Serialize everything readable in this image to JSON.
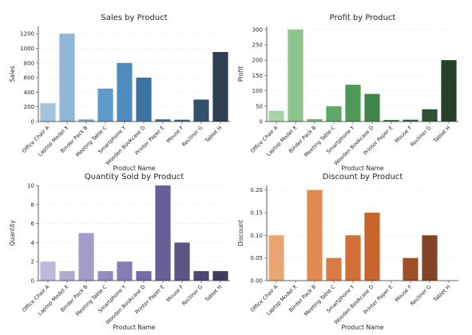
{
  "chart_data": [
    {
      "type": "bar",
      "title": "Sales by Product",
      "xlabel": "",
      "ylabel": "Sales",
      "ylim": [
        0,
        1300
      ],
      "yticks": [
        0,
        200,
        400,
        600,
        800,
        1000,
        1200
      ],
      "categories": [
        "Office Chair A",
        "Laptop Model X",
        "Binder Pack B",
        "Meeting Table C",
        "Smartphone Y",
        "Wooden Bookcase D",
        "Printer Paper E",
        "Mouse F",
        "Recliner G",
        "Tablet H"
      ],
      "values": [
        250,
        1200,
        30,
        450,
        800,
        600,
        30,
        25,
        300,
        950
      ],
      "colors": [
        "#a4c3dd",
        "#90b7d8",
        "#7baad2",
        "#5f9bc9",
        "#4f8bbc",
        "#3d75a2",
        "#3b6a8e",
        "#38607f",
        "#34506a",
        "#2d3f50"
      ],
      "grid": true
    },
    {
      "type": "bar",
      "title": "Profit by Product",
      "xlabel": "",
      "ylabel": "Profit",
      "ylim": [
        0,
        310
      ],
      "yticks": [
        0,
        50,
        100,
        150,
        200,
        250,
        300
      ],
      "categories": [
        "Office Chair A",
        "Laptop Model X",
        "Binder Pack B",
        "Meeting Table C",
        "Smartphone Y",
        "Wooden Bookcase D",
        "Printer Paper E",
        "Mouse F",
        "Recliner G",
        "Tablet H"
      ],
      "values": [
        35,
        300,
        8,
        50,
        120,
        90,
        5,
        6,
        40,
        200
      ],
      "colors": [
        "#a7d4a7",
        "#8cc58f",
        "#78b77c",
        "#5fa865",
        "#4e9956",
        "#3f854a",
        "#3a7342",
        "#35633b",
        "#2f5234",
        "#27412a"
      ],
      "grid": true
    },
    {
      "type": "bar",
      "title": "Quantity Sold by Product",
      "xlabel": "Product Name",
      "ylabel": "Quantity",
      "ylim": [
        0,
        10
      ],
      "yticks": [
        0,
        2,
        4,
        6,
        8,
        10
      ],
      "categories": [
        "Office Chair A",
        "Laptop Model X",
        "Binder Pack B",
        "Meeting Table C",
        "Smartphone Y",
        "Wooden Bookcase D",
        "Printer Paper E",
        "Mouse F",
        "Recliner G",
        "Tablet H"
      ],
      "values": [
        2,
        1,
        5,
        1,
        2,
        1,
        10,
        4,
        1,
        1
      ],
      "colors": [
        "#bfbad9",
        "#b1abd2",
        "#a29cca",
        "#938cc0",
        "#857db6",
        "#776ca9",
        "#6a5e98",
        "#5d5385",
        "#4f4770",
        "#413b5c"
      ],
      "grid": true
    },
    {
      "type": "bar",
      "title": "Discount by Product",
      "xlabel": "Product Name",
      "ylabel": "Discount",
      "ylim": [
        0,
        0.21
      ],
      "yticks": [
        0,
        0.05,
        0.1,
        0.15,
        0.2
      ],
      "ytick_labels": [
        "0.00",
        "0.05",
        "0.10",
        "0.15",
        "0.20"
      ],
      "categories": [
        "Office Chair A",
        "Laptop Model X",
        "Binder Pack B",
        "Meeting Table C",
        "Smartphone Y",
        "Wooden Bookcase D",
        "Printer Paper E",
        "Mouse F",
        "Recliner G",
        "Tablet H"
      ],
      "values": [
        0.1,
        0,
        0.2,
        0.05,
        0.1,
        0.15,
        0,
        0.05,
        0.1,
        0
      ],
      "colors": [
        "#e9a672",
        "#e49a62",
        "#df8b52",
        "#d87c45",
        "#d26f37",
        "#c8652f",
        "#b65a2a",
        "#9e4f26",
        "#824424",
        "#6a3a22"
      ],
      "grid": true
    }
  ],
  "shared": {
    "product_axis_label": "Product Name"
  }
}
